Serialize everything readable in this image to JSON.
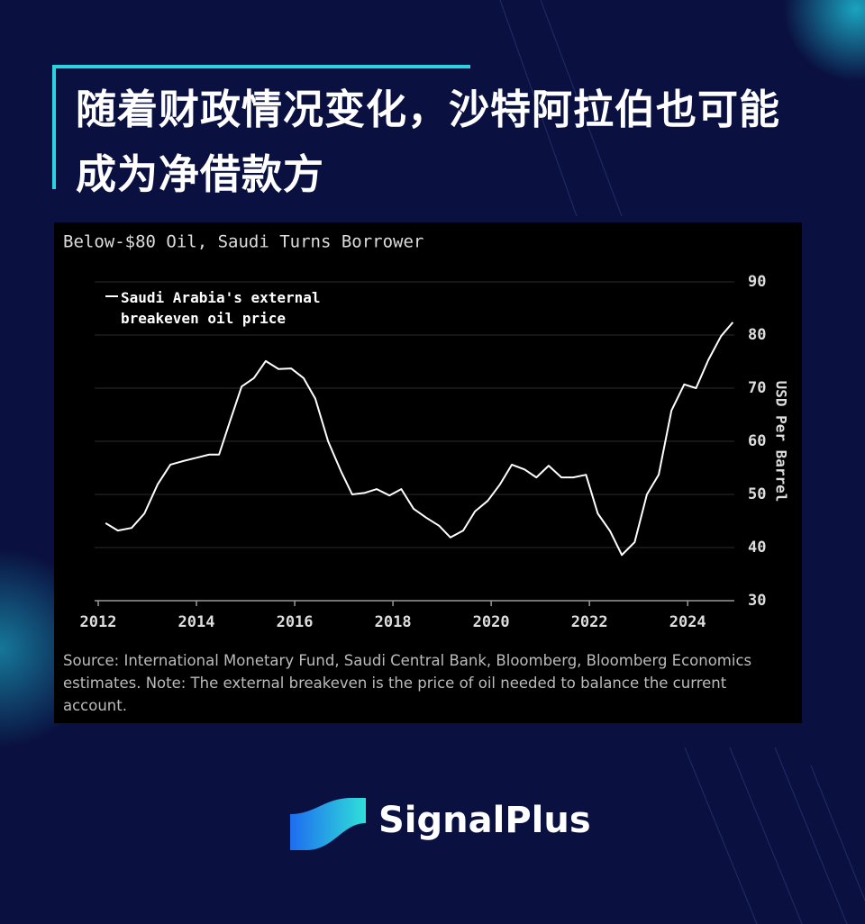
{
  "headline": "随着财政情况变化，沙特阿拉伯也可能成为净借款方",
  "chart_data": {
    "type": "line",
    "title": "Below-$80 Oil, Saudi Turns Borrower",
    "y_label": "USD Per Barrel",
    "x": [
      2012.15,
      2012.4,
      2012.68,
      2012.94,
      2013.21,
      2013.47,
      2013.74,
      2014.0,
      2014.26,
      2014.46,
      2014.68,
      2014.92,
      2015.17,
      2015.41,
      2015.67,
      2015.93,
      2016.18,
      2016.42,
      2016.68,
      2016.94,
      2017.17,
      2017.43,
      2017.67,
      2017.93,
      2018.17,
      2018.42,
      2018.68,
      2018.94,
      2019.17,
      2019.43,
      2019.67,
      2019.93,
      2020.18,
      2020.42,
      2020.68,
      2020.92,
      2021.17,
      2021.43,
      2021.67,
      2021.93,
      2022.17,
      2022.42,
      2022.66,
      2022.92,
      2023.17,
      2023.41,
      2023.67,
      2023.93,
      2024.17,
      2024.42,
      2024.68,
      2024.92
    ],
    "series": [
      {
        "name": "Saudi Arabia's external breakeven oil price",
        "color": "#ffffff",
        "values": [
          44.6,
          43.2,
          43.7,
          46.4,
          51.9,
          55.6,
          56.3,
          56.9,
          57.5,
          57.5,
          63.7,
          70.3,
          71.9,
          75.1,
          73.6,
          73.7,
          71.9,
          68.0,
          60.0,
          54.4,
          50.0,
          50.3,
          51.0,
          49.8,
          51.0,
          47.3,
          45.6,
          44.1,
          41.9,
          43.2,
          46.8,
          48.8,
          51.9,
          55.6,
          54.7,
          53.2,
          55.4,
          53.2,
          53.2,
          53.7,
          46.4,
          43.1,
          38.6,
          41.0,
          50.0,
          53.7,
          65.8,
          70.7,
          70.0,
          75.3,
          79.8,
          82.4
        ]
      }
    ],
    "xlim": [
      2012,
      2024.95
    ],
    "xticks": [
      2012,
      2014,
      2016,
      2018,
      2020,
      2022,
      2024
    ],
    "ylim": [
      30,
      90
    ],
    "yticks": [
      30,
      40,
      50,
      60,
      70,
      80,
      90
    ],
    "grid": true
  },
  "source": "Source: International Monetary Fund, Saudi Central Bank, Bloomberg, Bloomberg Economics estimates. Note: The external breakeven is the price of oil needed to balance the current account.",
  "brand": "SignalPlus"
}
